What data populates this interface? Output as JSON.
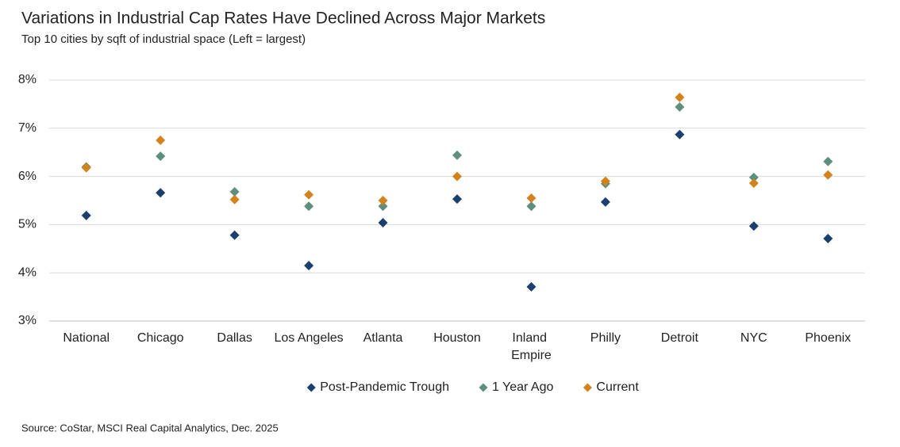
{
  "chart_data": {
    "type": "dot",
    "title": "Variations in Industrial Cap Rates Have Declined Across Major Markets",
    "subtitle": "Top 10 cities by sqft of industrial space (Left = largest)",
    "source": "Source: CoStar, MSCI Real Capital Analytics, Dec. 2025",
    "categories": [
      "National",
      "Chicago",
      "Dallas",
      "Los Angeles",
      "Atlanta",
      "Houston",
      "Inland Empire",
      "Philly",
      "Detroit",
      "NYC",
      "Phoenix"
    ],
    "series": [
      {
        "name": "Post-Pandemic Trough",
        "color": "#1b3f6e",
        "values": [
          5.19,
          5.66,
          4.78,
          4.15,
          5.04,
          5.53,
          3.71,
          5.47,
          6.87,
          4.97,
          4.71
        ]
      },
      {
        "name": "1 Year Ago",
        "color": "#5e8f7d",
        "values": [
          6.2,
          6.42,
          5.68,
          5.38,
          5.38,
          6.44,
          5.38,
          5.85,
          7.44,
          5.98,
          6.31
        ]
      },
      {
        "name": "Current",
        "color": "#d4821c",
        "values": [
          6.18,
          6.75,
          5.52,
          5.62,
          5.5,
          6.0,
          5.55,
          5.9,
          7.64,
          5.86,
          6.03
        ]
      }
    ],
    "ylim": [
      3,
      8
    ],
    "yticks": [
      {
        "value": 3,
        "label": "3%"
      },
      {
        "value": 4,
        "label": "4%"
      },
      {
        "value": 5,
        "label": "5%"
      },
      {
        "value": 6,
        "label": "6%"
      },
      {
        "value": 7,
        "label": "7%"
      },
      {
        "value": 8,
        "label": "8%"
      }
    ],
    "grid": true,
    "legend": "bottom"
  }
}
